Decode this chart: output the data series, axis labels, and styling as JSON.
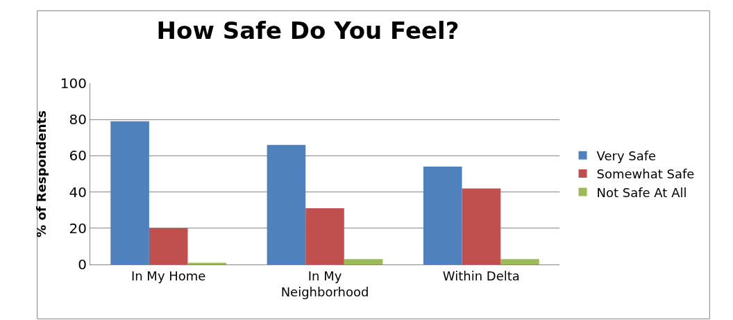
{
  "chart_data": {
    "type": "bar",
    "title": "How Safe Do You Feel?",
    "ylabel": "% of Respondents",
    "categories": [
      "In My Home",
      "In My Neighborhood",
      "Within Delta"
    ],
    "series": [
      {
        "name": "Very Safe",
        "color": "#4f81bd",
        "values": [
          79,
          66,
          54
        ]
      },
      {
        "name": "Somewhat Safe",
        "color": "#c0504d",
        "values": [
          20,
          31,
          42
        ]
      },
      {
        "name": "Not Safe At All",
        "color": "#9bbb59",
        "values": [
          1,
          3,
          3
        ]
      }
    ],
    "ylim": [
      0,
      100
    ],
    "yticks": [
      0,
      20,
      40,
      60,
      80,
      100
    ],
    "grid": "y",
    "legend": "right"
  }
}
